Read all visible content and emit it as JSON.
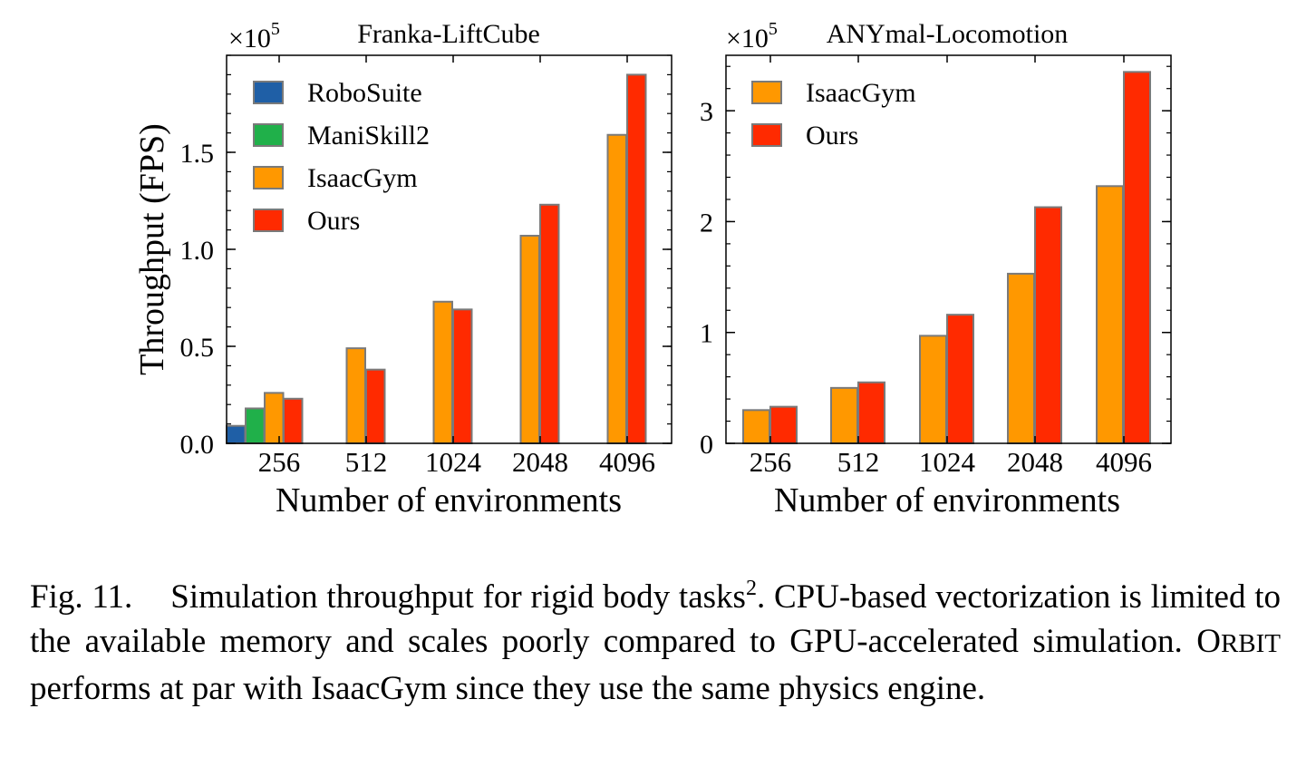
{
  "charts": [
    {
      "title": "Franka-LiftCube",
      "multiplier": {
        "base": "×10",
        "exp": "5"
      },
      "ylabel": "Throughput (FPS)",
      "xlabel": "Number of environments"
    },
    {
      "title": "ANYmal-Locomotion",
      "multiplier": {
        "base": "×10",
        "exp": "5"
      },
      "ylabel": "",
      "xlabel": "Number of environments"
    }
  ],
  "chart_data": [
    {
      "type": "bar",
      "title": "Franka-LiftCube",
      "xlabel": "Number of environments",
      "ylabel": "Throughput (FPS)",
      "y_scale_label": "×10^5",
      "categories": [
        "256",
        "512",
        "1024",
        "2048",
        "4096"
      ],
      "ylim": [
        0,
        2.0
      ],
      "yticks": [
        0.0,
        0.5,
        1.0,
        1.5
      ],
      "ytick_labels": [
        "0.0",
        "0.5",
        "1.0",
        "1.5"
      ],
      "legend_position": "upper-left",
      "series": [
        {
          "name": "RoboSuite",
          "color": "#1f5fa6",
          "values": [
            0.09,
            null,
            null,
            null,
            null
          ]
        },
        {
          "name": "ManiSkill2",
          "color": "#20b04a",
          "values": [
            0.18,
            null,
            null,
            null,
            null
          ]
        },
        {
          "name": "IsaacGym",
          "color": "#ff9800",
          "values": [
            0.26,
            0.49,
            0.73,
            1.07,
            1.59
          ]
        },
        {
          "name": "Ours",
          "color": "#ff2a00",
          "values": [
            0.23,
            0.38,
            0.69,
            1.23,
            1.9
          ]
        }
      ]
    },
    {
      "type": "bar",
      "title": "ANYmal-Locomotion",
      "xlabel": "Number of environments",
      "ylabel": "",
      "y_scale_label": "×10^5",
      "categories": [
        "256",
        "512",
        "1024",
        "2048",
        "4096"
      ],
      "ylim": [
        0,
        3.5
      ],
      "yticks": [
        0,
        1,
        2,
        3
      ],
      "ytick_labels": [
        "0",
        "1",
        "2",
        "3"
      ],
      "legend_position": "upper-left",
      "series": [
        {
          "name": "IsaacGym",
          "color": "#ff9800",
          "values": [
            0.3,
            0.5,
            0.97,
            1.53,
            2.32
          ]
        },
        {
          "name": "Ours",
          "color": "#ff2a00",
          "values": [
            0.33,
            0.55,
            1.16,
            2.13,
            3.35
          ]
        }
      ]
    }
  ],
  "caption": {
    "label": "Fig. 11.",
    "text_a": "Simulation throughput for rigid body tasks",
    "footnote": "2",
    "text_b": ". CPU-based vectorization is limited to the available memory and scales poorly compared to GPU-accelerated simulation. ",
    "orbit_initial": "O",
    "orbit_rest": "RBIT",
    "text_c": " performs at par with IsaacGym since they use the same physics engine."
  }
}
